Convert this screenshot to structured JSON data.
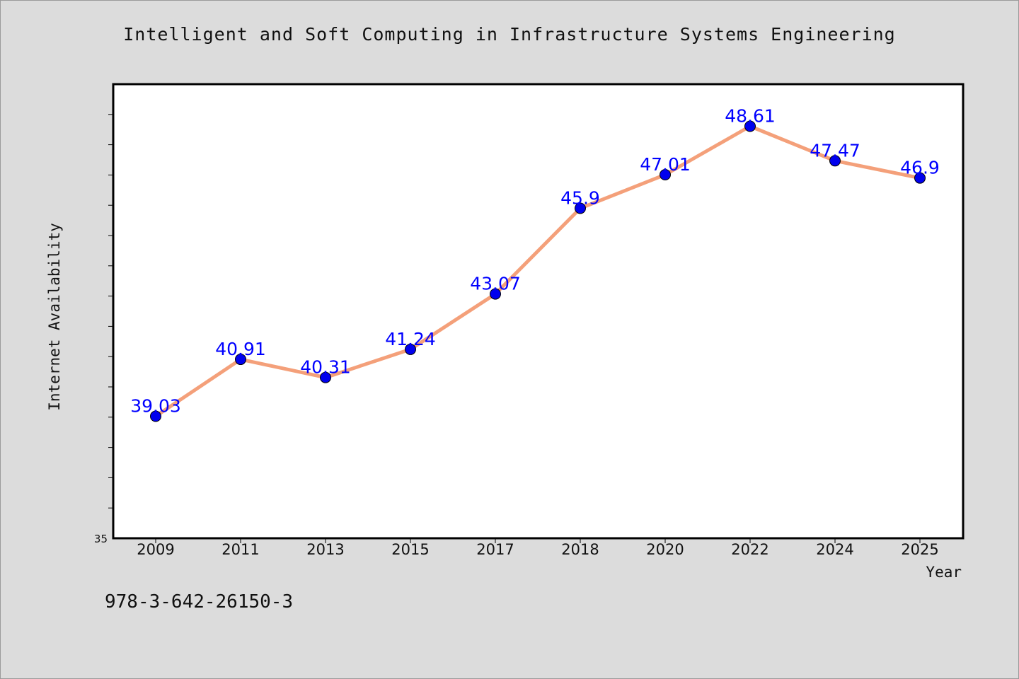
{
  "header": {
    "title": "Intelligent and Soft Computing in Infrastructure Systems Engineering"
  },
  "footer": {
    "isbn": "978-3-642-26150-3"
  },
  "chart_data": {
    "type": "line",
    "title": "Intelligent and Soft Computing in Infrastructure Systems Engineering",
    "xlabel": "Year",
    "ylabel": "Internet Availability",
    "categories": [
      "2009",
      "2011",
      "2013",
      "2015",
      "2017",
      "2018",
      "2020",
      "2022",
      "2024",
      "2025"
    ],
    "series": [
      {
        "values": [
          39.03,
          40.91,
          40.31,
          41.24,
          43.07,
          45.9,
          47.01,
          48.61,
          47.47,
          46.9
        ],
        "labels": [
          "39.03",
          "40.91",
          "40.31",
          "41.24",
          "43.07",
          "45.9",
          "47.01",
          "48.61",
          "47.47",
          "46.9"
        ]
      }
    ],
    "ylim": [
      35,
      50
    ],
    "y_tick_labels": [
      "35"
    ],
    "grid": false,
    "legend": "none",
    "colors": {
      "line": "#f4a07a",
      "marker": "#0000ee",
      "data_label": "#0000ff",
      "plot_background": "#ffffff",
      "page_background": "#dcdcdc"
    }
  }
}
